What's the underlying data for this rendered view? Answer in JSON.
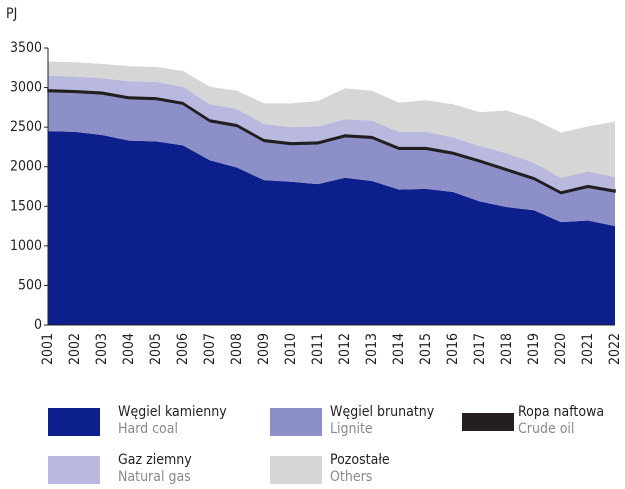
{
  "chart_data": {
    "type": "stacked_area",
    "y_label": "PJ",
    "categories": [
      "2001",
      "2002",
      "2003",
      "2004",
      "2005",
      "2006",
      "2007",
      "2008",
      "2009",
      "2010",
      "2011",
      "2012",
      "2013",
      "2014",
      "2015",
      "2016",
      "2017",
      "2018",
      "2019",
      "2020",
      "2021",
      "2022"
    ],
    "series": [
      {
        "name": "Węgiel kamienny",
        "name_en": "Hard coal",
        "color": "#0c1f8c",
        "values": [
          2450,
          2440,
          2400,
          2330,
          2320,
          2270,
          2080,
          1990,
          1830,
          1810,
          1780,
          1860,
          1820,
          1710,
          1720,
          1680,
          1560,
          1490,
          1450,
          1300,
          1320,
          1250
        ]
      },
      {
        "name": "Węgiel brunatny",
        "name_en": "Lignite",
        "color": "#8d8fc9",
        "values": [
          500,
          500,
          520,
          530,
          530,
          520,
          490,
          520,
          490,
          470,
          510,
          520,
          540,
          510,
          500,
          480,
          500,
          460,
          390,
          360,
          420,
          430
        ]
      },
      {
        "name": "Ropa naftowa",
        "name_en": "Crude oil",
        "color": "#231f20",
        "values": [
          30,
          30,
          30,
          30,
          30,
          30,
          30,
          30,
          30,
          30,
          30,
          30,
          30,
          30,
          30,
          30,
          30,
          30,
          30,
          30,
          30,
          30
        ]
      },
      {
        "name": "Gaz ziemny",
        "name_en": "Natural gas",
        "color": "#b9b9df",
        "values": [
          170,
          170,
          170,
          190,
          190,
          190,
          190,
          190,
          190,
          190,
          190,
          190,
          190,
          190,
          190,
          180,
          170,
          190,
          180,
          170,
          170,
          160
        ]
      },
      {
        "name": "Pozostałe",
        "name_en": "Others",
        "color": "#d6d6d6",
        "values": [
          180,
          180,
          180,
          190,
          190,
          200,
          220,
          230,
          260,
          300,
          320,
          390,
          380,
          370,
          400,
          420,
          430,
          540,
          550,
          570,
          570,
          700
        ]
      }
    ],
    "ylim": [
      0,
      3500
    ],
    "yticks": [
      0,
      500,
      1000,
      1500,
      2000,
      2500,
      3000,
      3500
    ]
  }
}
